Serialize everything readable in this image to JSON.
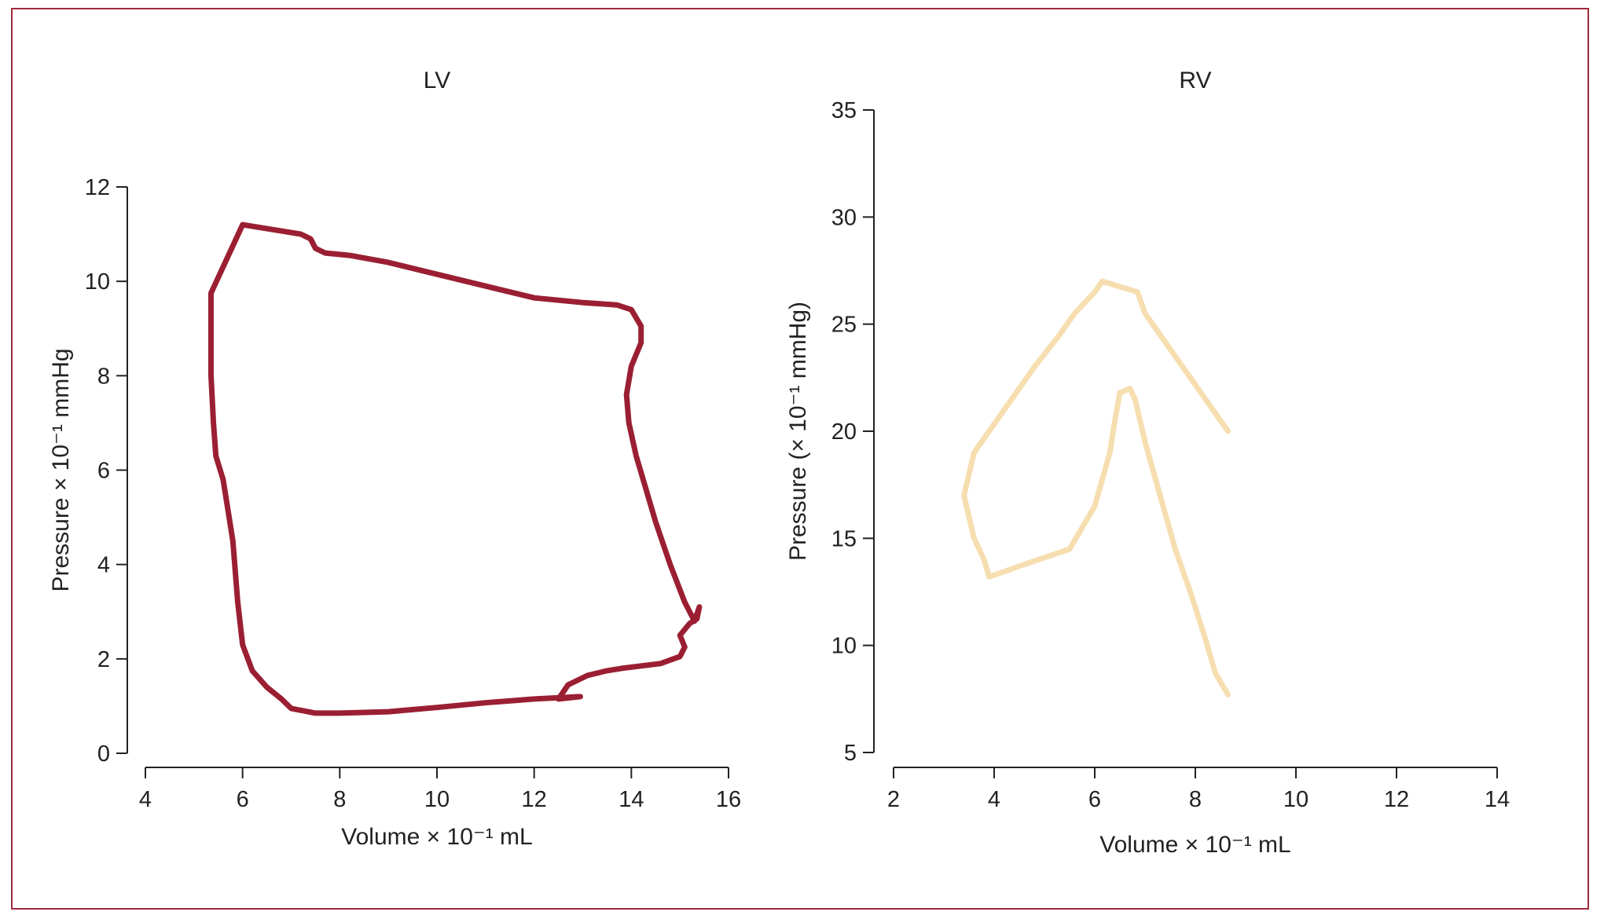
{
  "chart_data": [
    {
      "type": "line",
      "title": "LV",
      "xlabel": "Volume × 10⁻¹ mL",
      "ylabel": "Pressure × 10⁻¹ mmHg",
      "xlim": [
        4,
        16
      ],
      "ylim": [
        0,
        12
      ],
      "xticks": [
        4,
        6,
        8,
        10,
        12,
        14,
        16
      ],
      "yticks": [
        0,
        2,
        4,
        6,
        8,
        10,
        12
      ],
      "grid": false,
      "color": "#9b1f32",
      "series": [
        {
          "x": [
            12.95,
            12.5,
            12.7,
            13.1,
            13.5,
            13.8,
            14.2,
            14.6,
            15.0,
            15.1,
            15.0,
            15.2,
            15.35,
            15.4,
            15.3,
            15.1,
            14.8,
            14.5,
            14.3,
            14.1,
            13.95,
            13.9,
            14.0,
            14.2,
            14.2,
            14.0,
            13.7,
            13.0,
            12.0,
            11.0,
            10.0,
            9.0,
            8.2,
            7.7,
            7.5,
            7.4,
            7.2,
            6.9,
            6.0,
            5.35,
            5.35,
            5.4,
            5.45,
            5.6,
            5.8,
            5.9,
            6.0,
            6.2,
            6.5,
            6.8,
            7.0,
            7.5,
            8.0,
            9.0,
            10.0,
            11.0,
            12.0,
            12.95
          ],
          "y": [
            1.2,
            1.15,
            1.45,
            1.65,
            1.75,
            1.8,
            1.85,
            1.9,
            2.05,
            2.25,
            2.5,
            2.75,
            2.85,
            3.1,
            2.8,
            3.2,
            4.0,
            4.9,
            5.6,
            6.3,
            7.0,
            7.6,
            8.2,
            8.7,
            9.05,
            9.4,
            9.5,
            9.55,
            9.65,
            9.9,
            10.15,
            10.4,
            10.55,
            10.6,
            10.7,
            10.9,
            11.0,
            11.05,
            11.2,
            9.75,
            8.0,
            7.0,
            6.3,
            5.8,
            4.5,
            3.2,
            2.3,
            1.75,
            1.4,
            1.15,
            0.95,
            0.85,
            0.85,
            0.88,
            0.97,
            1.07,
            1.15,
            1.2
          ]
        }
      ]
    },
    {
      "type": "line",
      "title": "RV",
      "xlabel": "Volume × 10⁻¹ mL",
      "ylabel": "Pressure (× 10⁻¹ mmHg)",
      "xlim": [
        2,
        14
      ],
      "ylim": [
        5,
        35
      ],
      "xticks": [
        2,
        4,
        6,
        8,
        10,
        12,
        14
      ],
      "yticks": [
        5,
        10,
        15,
        20,
        25,
        30,
        35
      ],
      "grid": false,
      "color": "#f6deb0",
      "series": [
        {
          "x": [
            8.65,
            8.4,
            8.2,
            7.9,
            7.6,
            7.3,
            7.0,
            6.8,
            6.7,
            6.5,
            6.4,
            6.3,
            6.0,
            5.5,
            4.5,
            3.9,
            3.8,
            3.6,
            3.4,
            3.6,
            4.2,
            4.8,
            5.3,
            5.6,
            6.0,
            6.15,
            6.85,
            7.0,
            7.3,
            7.6,
            7.9,
            8.2,
            8.5,
            8.65
          ],
          "y": [
            7.7,
            8.7,
            10.3,
            12.5,
            14.5,
            17.0,
            19.5,
            21.5,
            22.0,
            21.8,
            20.5,
            19.0,
            16.5,
            14.5,
            13.7,
            13.2,
            14.0,
            15.0,
            17.0,
            19.0,
            21.0,
            23.0,
            24.5,
            25.5,
            26.5,
            27.0,
            26.5,
            25.5,
            24.5,
            23.5,
            22.5,
            21.5,
            20.5,
            20.0
          ]
        }
      ]
    }
  ]
}
